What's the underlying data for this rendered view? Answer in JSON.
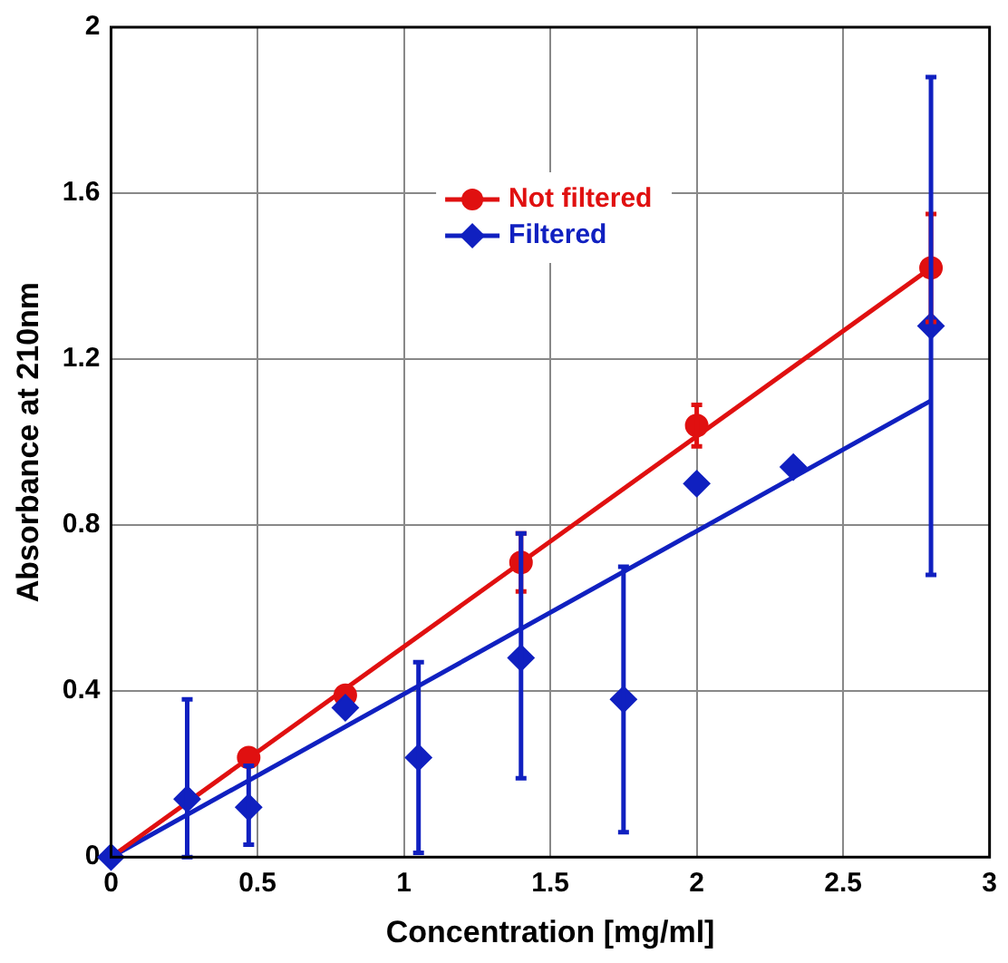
{
  "chart_data": {
    "type": "scatter",
    "xlabel": "Concentration [mg/ml]",
    "ylabel": "Absorbance at 210nm",
    "xlim": [
      0,
      3
    ],
    "xticks": [
      0,
      0.5,
      1,
      1.5,
      2,
      2.5,
      3
    ],
    "ylim": [
      0,
      2
    ],
    "yticks": [
      0,
      0.4,
      0.8,
      1.2,
      1.6,
      2
    ],
    "grid": true,
    "legend": "top",
    "line_style": "solid",
    "series": [
      {
        "name": "Not filtered",
        "color": "#e01010",
        "marker": "circle",
        "x": [
          0.47,
          0.8,
          1.4,
          2.0,
          2.8
        ],
        "values": [
          0.24,
          0.39,
          0.71,
          1.04,
          1.42
        ],
        "errors": [
          null,
          null,
          0.07,
          0.05,
          0.13
        ]
      },
      {
        "name": "Filtered",
        "color": "#1020c0",
        "marker": "diamond",
        "x": [
          0,
          0.26,
          0.47,
          0.8,
          1.05,
          1.4,
          1.75,
          2.0,
          2.33,
          2.8
        ],
        "values": [
          0,
          0.14,
          0.12,
          0.36,
          0.24,
          0.48,
          0.38,
          0.9,
          0.94,
          1.28
        ],
        "errors": [
          null,
          [
            0,
            0.38
          ],
          [
            0.03,
            0.22
          ],
          null,
          [
            0.01,
            0.47
          ],
          [
            0.19,
            0.78
          ],
          [
            0.06,
            0.7
          ],
          null,
          null,
          [
            0.68,
            1.88
          ]
        ]
      },
      {
        "type": "line",
        "color": "#e01010",
        "marker": "none",
        "x": [
          0,
          2.8
        ],
        "values": [
          0,
          1.42
        ]
      },
      {
        "type": "line",
        "color": "#1020c0",
        "marker": "none",
        "x": [
          0,
          2.8
        ],
        "values": [
          0,
          1.1
        ]
      }
    ]
  }
}
